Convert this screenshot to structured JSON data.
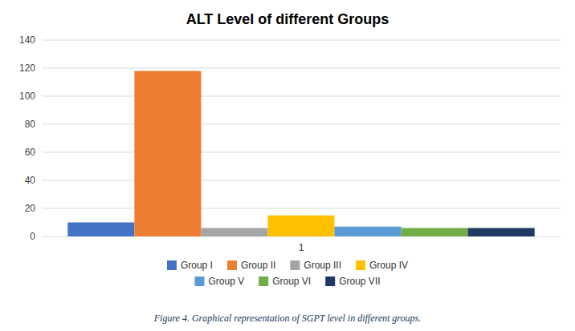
{
  "chart_data": {
    "type": "bar",
    "title": "ALT Level of different Groups",
    "caption": "Figure 4. Graphical representation of SGPT level in different groups.",
    "categories": [
      "1"
    ],
    "series": [
      {
        "name": "Group I",
        "color": "#4472C4",
        "values": [
          10
        ]
      },
      {
        "name": "Group II",
        "color": "#ED7D31",
        "values": [
          118
        ]
      },
      {
        "name": "Group III",
        "color": "#A5A5A5",
        "values": [
          6
        ]
      },
      {
        "name": "Group IV",
        "color": "#FFC000",
        "values": [
          15
        ]
      },
      {
        "name": "Group V",
        "color": "#5B9BD5",
        "values": [
          7
        ]
      },
      {
        "name": "Group VI",
        "color": "#70AD47",
        "values": [
          6
        ]
      },
      {
        "name": "Group VII",
        "color": "#203864",
        "values": [
          6
        ]
      }
    ],
    "ylim": [
      0,
      140
    ],
    "yticks": [
      0,
      20,
      40,
      60,
      80,
      100,
      120,
      140
    ],
    "grid": true,
    "legend": "bottom"
  }
}
